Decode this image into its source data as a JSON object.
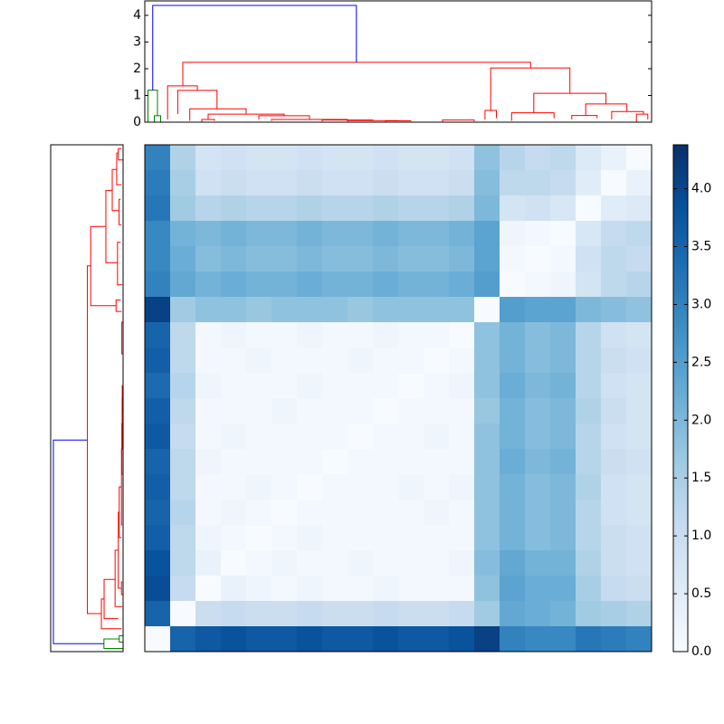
{
  "chart_data": [
    {
      "type": "dendrogram",
      "xlim": [
        0,
        800
      ],
      "ylim": [
        0,
        4.54
      ],
      "yticks": [
        0,
        1,
        2,
        3,
        4
      ],
      "links": [
        {
          "x": [
            5,
            5,
            20,
            20
          ],
          "y": [
            0,
            1.2,
            1.2,
            0.24
          ],
          "color": "#008000"
        },
        {
          "x": [
            15,
            15,
            25,
            25
          ],
          "y": [
            0,
            0.24,
            0.24,
            0
          ],
          "color": "#008000"
        },
        {
          "x": [
            12.5,
            12.5,
            334,
            334
          ],
          "y": [
            1.2,
            4.37,
            4.37,
            2.24
          ],
          "color": "#0000ff"
        },
        {
          "x": [
            60,
            60,
            609,
            609
          ],
          "y": [
            1.36,
            2.24,
            2.24,
            2.03
          ],
          "color": "#ff0000"
        },
        {
          "x": [
            36,
            36,
            83,
            83
          ],
          "y": [
            0.1,
            1.36,
            1.36,
            1.19
          ],
          "color": "#ff0000"
        },
        {
          "x": [
            52,
            52,
            114,
            114
          ],
          "y": [
            0.3,
            1.19,
            1.19,
            0.5
          ],
          "color": "#ff0000"
        },
        {
          "x": [
            71,
            71,
            160,
            160
          ],
          "y": [
            0.05,
            0.5,
            0.5,
            0.3
          ],
          "color": "#ff0000"
        },
        {
          "x": [
            100,
            100,
            220,
            220
          ],
          "y": [
            0.1,
            0.3,
            0.3,
            0.24
          ],
          "color": "#ff0000"
        },
        {
          "x": [
            90,
            90,
            110,
            110
          ],
          "y": [
            0,
            0.1,
            0.1,
            0.05
          ],
          "color": "#ff0000"
        },
        {
          "x": [
            180,
            180,
            260,
            260
          ],
          "y": [
            0.1,
            0.24,
            0.24,
            0.1
          ],
          "color": "#ff0000"
        },
        {
          "x": [
            200,
            200,
            320,
            320
          ],
          "y": [
            0.05,
            0.1,
            0.1,
            0.08
          ],
          "color": "#ff0000"
        },
        {
          "x": [
            280,
            280,
            360,
            360
          ],
          "y": [
            0.03,
            0.08,
            0.08,
            0.06
          ],
          "color": "#ff0000"
        },
        {
          "x": [
            320,
            320,
            400,
            400
          ],
          "y": [
            0.02,
            0.06,
            0.06,
            0.05
          ],
          "color": "#ff0000"
        },
        {
          "x": [
            380,
            380,
            420,
            420
          ],
          "y": [
            0.02,
            0.05,
            0.05,
            0.04
          ],
          "color": "#ff0000"
        },
        {
          "x": [
            470,
            470,
            520,
            520
          ],
          "y": [
            0.02,
            0.08,
            0.08,
            0.03
          ],
          "color": "#ff0000"
        },
        {
          "x": [
            546,
            546,
            671,
            671
          ],
          "y": [
            0.44,
            2.03,
            2.03,
            1.08
          ],
          "color": "#ff0000"
        },
        {
          "x": [
            537,
            537,
            555,
            555
          ],
          "y": [
            0.1,
            0.44,
            0.44,
            0.15
          ],
          "color": "#ff0000"
        },
        {
          "x": [
            614,
            614,
            728,
            728
          ],
          "y": [
            0.35,
            1.08,
            1.08,
            0.68
          ],
          "color": "#ff0000"
        },
        {
          "x": [
            579,
            579,
            646,
            646
          ],
          "y": [
            0.05,
            0.35,
            0.35,
            0.15
          ],
          "color": "#ff0000"
        },
        {
          "x": [
            696,
            696,
            761,
            761
          ],
          "y": [
            0.25,
            0.68,
            0.68,
            0.4
          ],
          "color": "#ff0000"
        },
        {
          "x": [
            737,
            737,
            787,
            787
          ],
          "y": [
            0.1,
            0.4,
            0.4,
            0.3
          ],
          "color": "#ff0000"
        },
        {
          "x": [
            776,
            776,
            794,
            794
          ],
          "y": [
            0,
            0.3,
            0.3,
            0.1
          ],
          "color": "#ff0000"
        },
        {
          "x": [
            674,
            674,
            714,
            714
          ],
          "y": [
            0.1,
            0.25,
            0.25,
            0.15
          ],
          "color": "#ff0000"
        }
      ]
    },
    {
      "type": "heatmap",
      "colormap": [
        "#f7fbff",
        "#deebf7",
        "#c6dbef",
        "#9ecae1",
        "#6baed6",
        "#4292c6",
        "#2171b5",
        "#08519c",
        "#08306b"
      ],
      "zlim": [
        0,
        4.38
      ],
      "zticks": [
        {
          "value": 0,
          "label": "0.0"
        },
        0.5,
        {
          "value": 1,
          "label": "1.0"
        },
        1.5,
        {
          "value": 2,
          "label": "2.0"
        },
        2.5,
        {
          "value": 3,
          "label": "3.0"
        },
        3.5,
        {
          "value": 4,
          "label": "4.0"
        }
      ],
      "values": [
        [
          3.0,
          1.4,
          0.8,
          0.9,
          0.8,
          0.8,
          0.9,
          0.8,
          0.8,
          0.9,
          0.8,
          0.8,
          0.9,
          1.8,
          1.3,
          1.1,
          1.2,
          0.6,
          0.3,
          0.0
        ],
        [
          3.1,
          1.5,
          0.9,
          1.0,
          0.9,
          0.9,
          1.0,
          0.9,
          0.9,
          1.0,
          0.9,
          0.9,
          1.0,
          1.9,
          1.2,
          1.2,
          1.1,
          0.5,
          0.0,
          0.3
        ],
        [
          3.2,
          1.6,
          1.3,
          1.4,
          1.3,
          1.3,
          1.4,
          1.3,
          1.3,
          1.4,
          1.3,
          1.3,
          1.4,
          2.0,
          0.8,
          0.9,
          0.7,
          0.0,
          0.5,
          0.6
        ],
        [
          2.9,
          2.1,
          2.0,
          2.1,
          2.0,
          2.0,
          2.1,
          2.0,
          2.0,
          2.1,
          2.0,
          2.0,
          2.1,
          2.4,
          0.2,
          0.1,
          0.0,
          0.7,
          1.1,
          1.2
        ],
        [
          2.9,
          2.2,
          1.9,
          2.0,
          1.9,
          1.9,
          2.0,
          1.9,
          1.9,
          2.0,
          1.9,
          1.9,
          2.0,
          2.4,
          0.1,
          0.0,
          0.1,
          0.9,
          1.2,
          1.1
        ],
        [
          3.0,
          2.3,
          2.1,
          2.2,
          2.1,
          2.1,
          2.2,
          2.1,
          2.1,
          2.2,
          2.1,
          2.1,
          2.2,
          2.5,
          0.0,
          0.1,
          0.2,
          0.8,
          1.2,
          1.3
        ],
        [
          4.1,
          1.6,
          1.8,
          1.8,
          1.7,
          1.8,
          1.8,
          1.8,
          1.7,
          1.8,
          1.8,
          1.8,
          1.8,
          0.0,
          2.5,
          2.4,
          2.4,
          2.0,
          1.9,
          1.8
        ],
        [
          3.5,
          1.2,
          0.1,
          0.2,
          0.1,
          0.1,
          0.2,
          0.1,
          0.1,
          0.2,
          0.1,
          0.1,
          0.0,
          1.8,
          2.1,
          1.9,
          2.0,
          1.3,
          0.9,
          0.8
        ],
        [
          3.6,
          1.2,
          0.1,
          0.1,
          0.2,
          0.1,
          0.1,
          0.1,
          0.2,
          0.1,
          0.1,
          0.0,
          0.1,
          1.8,
          2.1,
          1.9,
          2.0,
          1.3,
          1.0,
          0.9
        ],
        [
          3.4,
          1.3,
          0.2,
          0.1,
          0.1,
          0.1,
          0.2,
          0.1,
          0.1,
          0.1,
          0.0,
          0.1,
          0.2,
          1.8,
          2.2,
          2.0,
          2.1,
          1.3,
          0.9,
          0.8
        ],
        [
          3.6,
          1.2,
          0.1,
          0.1,
          0.1,
          0.2,
          0.1,
          0.1,
          0.1,
          0.0,
          0.1,
          0.1,
          0.1,
          1.7,
          2.1,
          1.9,
          2.0,
          1.4,
          1.0,
          0.8
        ],
        [
          3.7,
          1.1,
          0.1,
          0.2,
          0.1,
          0.1,
          0.1,
          0.1,
          0.0,
          0.1,
          0.1,
          0.2,
          0.1,
          1.8,
          2.1,
          1.9,
          2.0,
          1.3,
          0.9,
          0.8
        ],
        [
          3.5,
          1.2,
          0.2,
          0.1,
          0.1,
          0.1,
          0.1,
          0.0,
          0.1,
          0.1,
          0.1,
          0.1,
          0.1,
          1.8,
          2.2,
          2.0,
          2.1,
          1.3,
          1.0,
          0.9
        ],
        [
          3.6,
          1.2,
          0.1,
          0.1,
          0.2,
          0.1,
          0.0,
          0.1,
          0.1,
          0.1,
          0.2,
          0.1,
          0.2,
          1.8,
          2.1,
          1.9,
          2.0,
          1.4,
          0.9,
          0.8
        ],
        [
          3.5,
          1.3,
          0.1,
          0.2,
          0.1,
          0.0,
          0.1,
          0.1,
          0.1,
          0.1,
          0.1,
          0.2,
          0.1,
          1.8,
          2.1,
          1.9,
          2.0,
          1.3,
          0.9,
          0.8
        ],
        [
          3.6,
          1.2,
          0.2,
          0.1,
          0.0,
          0.1,
          0.2,
          0.1,
          0.1,
          0.1,
          0.1,
          0.1,
          0.1,
          1.8,
          2.1,
          1.9,
          2.0,
          1.3,
          1.0,
          0.9
        ],
        [
          3.8,
          1.2,
          0.3,
          0.0,
          0.1,
          0.2,
          0.1,
          0.1,
          0.2,
          0.1,
          0.1,
          0.1,
          0.2,
          1.9,
          2.3,
          2.1,
          2.1,
          1.4,
          1.0,
          0.9
        ],
        [
          3.9,
          1.1,
          0.0,
          0.3,
          0.2,
          0.1,
          0.2,
          0.1,
          0.1,
          0.2,
          0.1,
          0.1,
          0.1,
          1.8,
          2.4,
          2.2,
          2.2,
          1.5,
          1.1,
          1.0
        ],
        [
          3.5,
          0.0,
          1.0,
          1.1,
          1.0,
          1.0,
          1.1,
          1.0,
          1.0,
          1.1,
          1.0,
          1.0,
          1.1,
          1.6,
          2.3,
          2.2,
          2.1,
          1.6,
          1.5,
          1.4
        ],
        [
          0.0,
          3.5,
          3.7,
          3.8,
          3.7,
          3.7,
          3.8,
          3.7,
          3.7,
          3.8,
          3.7,
          3.7,
          3.8,
          4.1,
          3.0,
          2.9,
          2.9,
          3.2,
          3.1,
          3.0
        ]
      ]
    }
  ]
}
